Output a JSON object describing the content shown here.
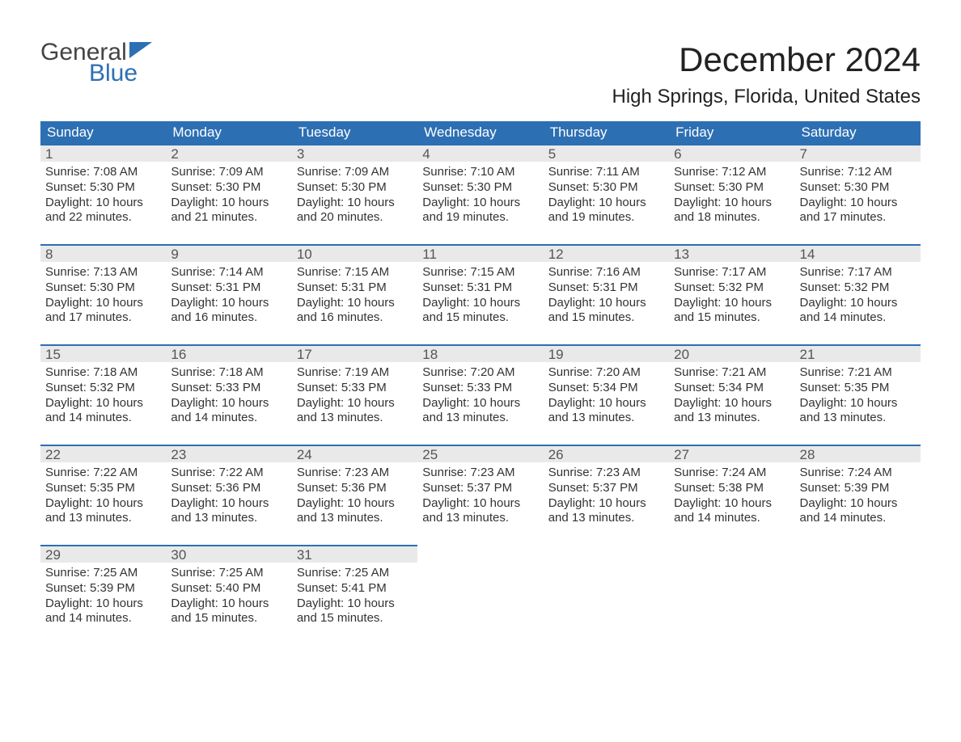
{
  "logo": {
    "line1": "General",
    "line2": "Blue",
    "icon_color": "#2d6fb3"
  },
  "title": "December 2024",
  "location": "High Springs, Florida, United States",
  "colors": {
    "header_bg": "#2d6fb3",
    "header_text": "#ffffff",
    "daynum_bg": "#e9e9e9",
    "daynum_border": "#2d6fb3",
    "body_text": "#333333",
    "page_bg": "#ffffff"
  },
  "day_headers": [
    "Sunday",
    "Monday",
    "Tuesday",
    "Wednesday",
    "Thursday",
    "Friday",
    "Saturday"
  ],
  "days": [
    {
      "num": "1",
      "sunrise": "Sunrise: 7:08 AM",
      "sunset": "Sunset: 5:30 PM",
      "d1": "Daylight: 10 hours",
      "d2": "and 22 minutes."
    },
    {
      "num": "2",
      "sunrise": "Sunrise: 7:09 AM",
      "sunset": "Sunset: 5:30 PM",
      "d1": "Daylight: 10 hours",
      "d2": "and 21 minutes."
    },
    {
      "num": "3",
      "sunrise": "Sunrise: 7:09 AM",
      "sunset": "Sunset: 5:30 PM",
      "d1": "Daylight: 10 hours",
      "d2": "and 20 minutes."
    },
    {
      "num": "4",
      "sunrise": "Sunrise: 7:10 AM",
      "sunset": "Sunset: 5:30 PM",
      "d1": "Daylight: 10 hours",
      "d2": "and 19 minutes."
    },
    {
      "num": "5",
      "sunrise": "Sunrise: 7:11 AM",
      "sunset": "Sunset: 5:30 PM",
      "d1": "Daylight: 10 hours",
      "d2": "and 19 minutes."
    },
    {
      "num": "6",
      "sunrise": "Sunrise: 7:12 AM",
      "sunset": "Sunset: 5:30 PM",
      "d1": "Daylight: 10 hours",
      "d2": "and 18 minutes."
    },
    {
      "num": "7",
      "sunrise": "Sunrise: 7:12 AM",
      "sunset": "Sunset: 5:30 PM",
      "d1": "Daylight: 10 hours",
      "d2": "and 17 minutes."
    },
    {
      "num": "8",
      "sunrise": "Sunrise: 7:13 AM",
      "sunset": "Sunset: 5:30 PM",
      "d1": "Daylight: 10 hours",
      "d2": "and 17 minutes."
    },
    {
      "num": "9",
      "sunrise": "Sunrise: 7:14 AM",
      "sunset": "Sunset: 5:31 PM",
      "d1": "Daylight: 10 hours",
      "d2": "and 16 minutes."
    },
    {
      "num": "10",
      "sunrise": "Sunrise: 7:15 AM",
      "sunset": "Sunset: 5:31 PM",
      "d1": "Daylight: 10 hours",
      "d2": "and 16 minutes."
    },
    {
      "num": "11",
      "sunrise": "Sunrise: 7:15 AM",
      "sunset": "Sunset: 5:31 PM",
      "d1": "Daylight: 10 hours",
      "d2": "and 15 minutes."
    },
    {
      "num": "12",
      "sunrise": "Sunrise: 7:16 AM",
      "sunset": "Sunset: 5:31 PM",
      "d1": "Daylight: 10 hours",
      "d2": "and 15 minutes."
    },
    {
      "num": "13",
      "sunrise": "Sunrise: 7:17 AM",
      "sunset": "Sunset: 5:32 PM",
      "d1": "Daylight: 10 hours",
      "d2": "and 15 minutes."
    },
    {
      "num": "14",
      "sunrise": "Sunrise: 7:17 AM",
      "sunset": "Sunset: 5:32 PM",
      "d1": "Daylight: 10 hours",
      "d2": "and 14 minutes."
    },
    {
      "num": "15",
      "sunrise": "Sunrise: 7:18 AM",
      "sunset": "Sunset: 5:32 PM",
      "d1": "Daylight: 10 hours",
      "d2": "and 14 minutes."
    },
    {
      "num": "16",
      "sunrise": "Sunrise: 7:18 AM",
      "sunset": "Sunset: 5:33 PM",
      "d1": "Daylight: 10 hours",
      "d2": "and 14 minutes."
    },
    {
      "num": "17",
      "sunrise": "Sunrise: 7:19 AM",
      "sunset": "Sunset: 5:33 PM",
      "d1": "Daylight: 10 hours",
      "d2": "and 13 minutes."
    },
    {
      "num": "18",
      "sunrise": "Sunrise: 7:20 AM",
      "sunset": "Sunset: 5:33 PM",
      "d1": "Daylight: 10 hours",
      "d2": "and 13 minutes."
    },
    {
      "num": "19",
      "sunrise": "Sunrise: 7:20 AM",
      "sunset": "Sunset: 5:34 PM",
      "d1": "Daylight: 10 hours",
      "d2": "and 13 minutes."
    },
    {
      "num": "20",
      "sunrise": "Sunrise: 7:21 AM",
      "sunset": "Sunset: 5:34 PM",
      "d1": "Daylight: 10 hours",
      "d2": "and 13 minutes."
    },
    {
      "num": "21",
      "sunrise": "Sunrise: 7:21 AM",
      "sunset": "Sunset: 5:35 PM",
      "d1": "Daylight: 10 hours",
      "d2": "and 13 minutes."
    },
    {
      "num": "22",
      "sunrise": "Sunrise: 7:22 AM",
      "sunset": "Sunset: 5:35 PM",
      "d1": "Daylight: 10 hours",
      "d2": "and 13 minutes."
    },
    {
      "num": "23",
      "sunrise": "Sunrise: 7:22 AM",
      "sunset": "Sunset: 5:36 PM",
      "d1": "Daylight: 10 hours",
      "d2": "and 13 minutes."
    },
    {
      "num": "24",
      "sunrise": "Sunrise: 7:23 AM",
      "sunset": "Sunset: 5:36 PM",
      "d1": "Daylight: 10 hours",
      "d2": "and 13 minutes."
    },
    {
      "num": "25",
      "sunrise": "Sunrise: 7:23 AM",
      "sunset": "Sunset: 5:37 PM",
      "d1": "Daylight: 10 hours",
      "d2": "and 13 minutes."
    },
    {
      "num": "26",
      "sunrise": "Sunrise: 7:23 AM",
      "sunset": "Sunset: 5:37 PM",
      "d1": "Daylight: 10 hours",
      "d2": "and 13 minutes."
    },
    {
      "num": "27",
      "sunrise": "Sunrise: 7:24 AM",
      "sunset": "Sunset: 5:38 PM",
      "d1": "Daylight: 10 hours",
      "d2": "and 14 minutes."
    },
    {
      "num": "28",
      "sunrise": "Sunrise: 7:24 AM",
      "sunset": "Sunset: 5:39 PM",
      "d1": "Daylight: 10 hours",
      "d2": "and 14 minutes."
    },
    {
      "num": "29",
      "sunrise": "Sunrise: 7:25 AM",
      "sunset": "Sunset: 5:39 PM",
      "d1": "Daylight: 10 hours",
      "d2": "and 14 minutes."
    },
    {
      "num": "30",
      "sunrise": "Sunrise: 7:25 AM",
      "sunset": "Sunset: 5:40 PM",
      "d1": "Daylight: 10 hours",
      "d2": "and 15 minutes."
    },
    {
      "num": "31",
      "sunrise": "Sunrise: 7:25 AM",
      "sunset": "Sunset: 5:41 PM",
      "d1": "Daylight: 10 hours",
      "d2": "and 15 minutes."
    }
  ]
}
